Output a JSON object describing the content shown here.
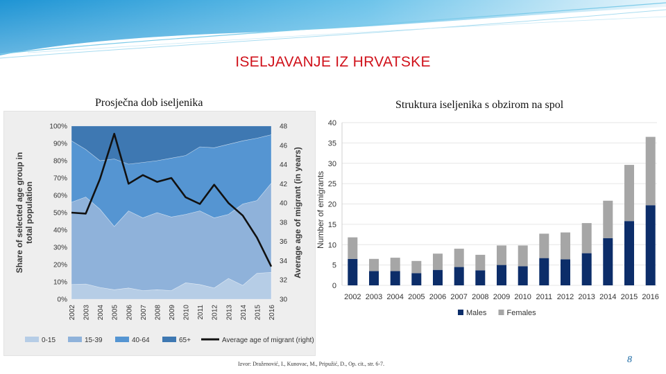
{
  "slide": {
    "title": "ISELJAVANJE IZ HRVATSKE",
    "subtitle_left": "Prosječna dob iseljenika",
    "subtitle_right": "Struktura iseljenika s obzirom na spol",
    "source": "Izvor: Draženović, I., Kunovac, M., Pripužić, D., Op. cit., str. 6-7.",
    "page_number": "8",
    "accent_color": "#d0121b",
    "banner_color": "#2a9fd8"
  },
  "chart_data": [
    {
      "type": "area",
      "stacked": true,
      "normalized": true,
      "x": [
        "2002",
        "2003",
        "2004",
        "2005",
        "2006",
        "2007",
        "2008",
        "2009",
        "2010",
        "2011",
        "2012",
        "2013",
        "2014",
        "2015",
        "2016"
      ],
      "series": [
        {
          "name": "0-15",
          "color": "#b6cde6",
          "values": [
            8.5,
            8.8,
            6.8,
            5.5,
            6.5,
            5,
            5.5,
            5,
            9.5,
            8.5,
            6.5,
            12,
            8,
            15,
            15.5
          ]
        },
        {
          "name": "15-39",
          "color": "#8fb2da",
          "values": [
            47.5,
            50.2,
            45.2,
            36.5,
            44.5,
            42,
            44.5,
            42.5,
            39.5,
            42.5,
            40.5,
            37,
            47,
            42,
            51.5
          ]
        },
        {
          "name": "40-64",
          "color": "#5595d2",
          "values": [
            35.5,
            27.5,
            28,
            39,
            27,
            32,
            30,
            34,
            34,
            37,
            40.5,
            40.5,
            36.5,
            36,
            28
          ]
        },
        {
          "name": "65+",
          "color": "#3e78b2",
          "values": [
            8.5,
            13.5,
            20,
            19,
            22,
            21,
            20,
            18.5,
            17,
            12,
            12.5,
            10.5,
            8.5,
            7,
            5
          ]
        }
      ],
      "line": {
        "name": "Average age of migrant (right)",
        "color": "#111111",
        "values": [
          39,
          38.9,
          42.5,
          47.2,
          42,
          42.9,
          42.2,
          42.6,
          40.6,
          39.9,
          41.9,
          40,
          38.7,
          36.4,
          33.4
        ]
      },
      "ylabel": "Share of selected age group in total population",
      "y2label": "Average age of migrant (in years)",
      "yticks": [
        "0%",
        "10%",
        "20%",
        "30%",
        "40%",
        "50%",
        "60%",
        "70%",
        "80%",
        "90%",
        "100%"
      ],
      "y2ticks": [
        "30",
        "32",
        "34",
        "36",
        "38",
        "40",
        "42",
        "44",
        "46",
        "48"
      ],
      "ylim": [
        0,
        100
      ],
      "y2lim": [
        30,
        48
      ],
      "legend": [
        "0-15",
        "15-39",
        "40-64",
        "65+",
        "Average age of migrant (right)"
      ],
      "legend_position": "bottom"
    },
    {
      "type": "bar",
      "stacked": true,
      "categories": [
        "2002",
        "2003",
        "2004",
        "2005",
        "2006",
        "2007",
        "2008",
        "2009",
        "2010",
        "2011",
        "2012",
        "2013",
        "2014",
        "2015",
        "2016"
      ],
      "series": [
        {
          "name": "Males",
          "color": "#0c2d69",
          "values": [
            6.5,
            3.5,
            3.5,
            3.0,
            3.8,
            4.5,
            3.7,
            5.0,
            4.7,
            6.7,
            6.4,
            7.9,
            11.6,
            15.8,
            19.7
          ]
        },
        {
          "name": "Females",
          "color": "#a6a6a6",
          "values": [
            5.3,
            3.0,
            3.3,
            3.0,
            4.0,
            4.5,
            3.8,
            4.8,
            5.1,
            6.0,
            6.6,
            7.4,
            9.2,
            13.8,
            16.8
          ]
        }
      ],
      "ylabel": "Number of emigrants",
      "yticks": [
        "0",
        "5",
        "10",
        "15",
        "20",
        "25",
        "30",
        "35",
        "40"
      ],
      "ylim": [
        0,
        40
      ],
      "grid": true,
      "legend": [
        "Males",
        "Females"
      ],
      "legend_position": "bottom"
    }
  ]
}
